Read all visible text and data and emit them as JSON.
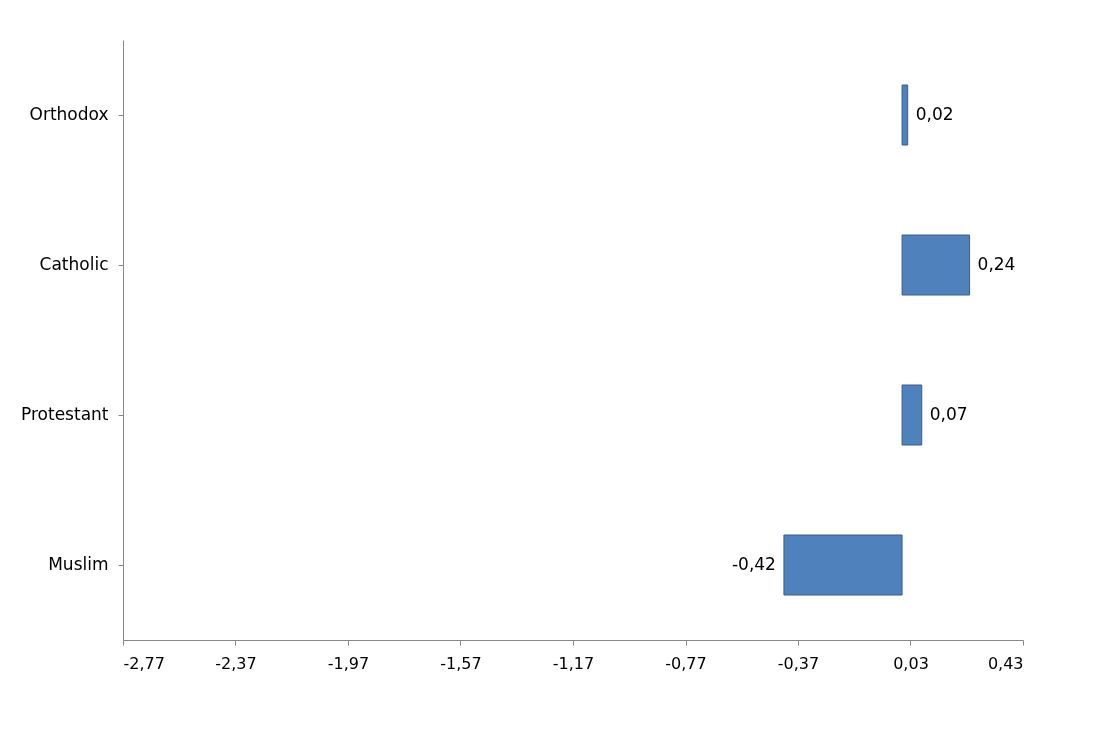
{
  "chart_data": {
    "type": "bar",
    "orientation": "horizontal",
    "categories": [
      "Orthodox",
      "Catholic",
      "Protestant",
      "Muslim"
    ],
    "values": [
      0.02,
      0.24,
      0.07,
      -0.42
    ],
    "value_labels": [
      "0,02",
      "0,24",
      "0,07",
      "-0,42"
    ],
    "color": "#4f81bd",
    "xlim": [
      -2.77,
      0.43
    ],
    "xticks": [
      {
        "value": -2.77,
        "label": "-2,77"
      },
      {
        "value": -2.37,
        "label": "-2,37"
      },
      {
        "value": -1.97,
        "label": "-1,97"
      },
      {
        "value": -1.57,
        "label": "-1,57"
      },
      {
        "value": -1.17,
        "label": "-1,17"
      },
      {
        "value": -0.77,
        "label": "-0,77"
      },
      {
        "value": -0.37,
        "label": "-0,37"
      },
      {
        "value": 0.03,
        "label": "0,03"
      },
      {
        "value": 0.43,
        "label": "0,43"
      }
    ],
    "grid": false
  }
}
